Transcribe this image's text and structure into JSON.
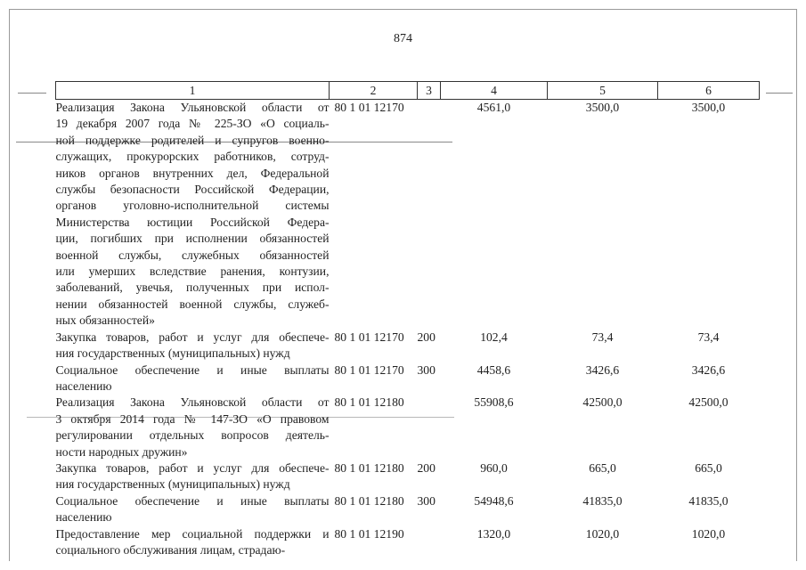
{
  "page_number": "874",
  "table": {
    "headers": [
      "1",
      "2",
      "3",
      "4",
      "5",
      "6"
    ],
    "rows": [
      {
        "lines": [
          "Реализация Закона Ульяновской области от",
          "19 декабря 2007 года № 225-ЗО «О социаль-",
          "ной поддержке родителей и супругов военно-",
          "служащих, прокурорских работников, сотруд-",
          "ников органов внутренних дел, Федеральной",
          "службы безопасности Российской Федерации,",
          "органов уголовно-исполнительной системы",
          "Министерства юстиции Российской Федера-",
          "ции, погибших при исполнении обязанностей",
          "военной службы, служебных обязанностей",
          "или умерших вследствие ранения, контузии,",
          "заболеваний, увечья, полученных при испол-",
          "нении обязанностей военной службы, служеб-",
          "ных обязанностей»"
        ],
        "code": "80 1 01 12170",
        "type": "",
        "v4": "4561,0",
        "v5": "3500,0",
        "v6": "3500,0"
      },
      {
        "lines": [
          "Закупка товаров, работ и услуг для обеспече-",
          "ния государственных (муниципальных) нужд"
        ],
        "code": "80 1 01 12170",
        "type": "200",
        "v4": "102,4",
        "v5": "73,4",
        "v6": "73,4"
      },
      {
        "lines": [
          "Социальное обеспечение и иные выплаты",
          "населению"
        ],
        "code": "80 1 01 12170",
        "type": "300",
        "v4": "4458,6",
        "v5": "3426,6",
        "v6": "3426,6"
      },
      {
        "lines": [
          "Реализация Закона Ульяновской области от",
          "3 октября 2014 года № 147-ЗО «О правовом",
          "регулировании отдельных вопросов деятель-",
          "ности народных дружин»"
        ],
        "code": "80 1 01 12180",
        "type": "",
        "v4": "55908,6",
        "v5": "42500,0",
        "v6": "42500,0"
      },
      {
        "lines": [
          "Закупка товаров, работ и услуг для обеспече-",
          "ния государственных (муниципальных) нужд"
        ],
        "code": "80 1 01 12180",
        "type": "200",
        "v4": "960,0",
        "v5": "665,0",
        "v6": "665,0"
      },
      {
        "lines": [
          "Социальное обеспечение и иные выплаты",
          "населению"
        ],
        "code": "80 1 01 12180",
        "type": "300",
        "v4": "54948,6",
        "v5": "41835,0",
        "v6": "41835,0"
      },
      {
        "lines": [
          "Предоставление мер социальной поддержки и",
          "социального обслуживания лицам, страдаю-"
        ],
        "code": "80 1 01 12190",
        "type": "",
        "v4": "1320,0",
        "v5": "1020,0",
        "v6": "1020,0"
      }
    ]
  }
}
